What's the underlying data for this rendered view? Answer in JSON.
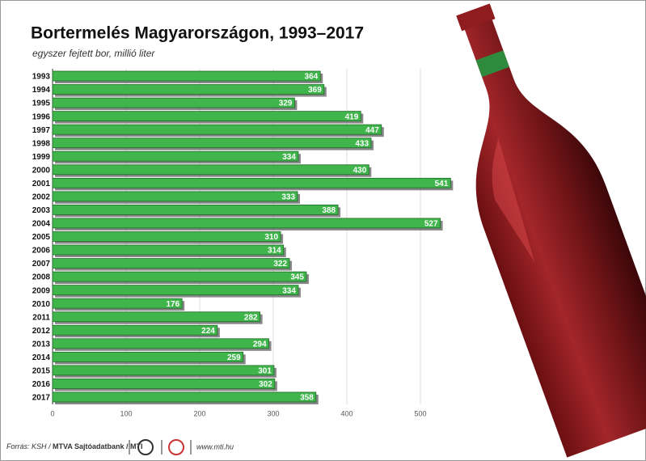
{
  "chart_data": {
    "type": "bar",
    "title": "Bortermelés Magyarországon, 1993–2017",
    "subtitle": "egyszer fejtett bor, millió liter",
    "categories": [
      "1993",
      "1994",
      "1995",
      "1996",
      "1997",
      "1998",
      "1999",
      "2000",
      "2001",
      "2002",
      "2003",
      "2004",
      "2005",
      "2006",
      "2007",
      "2008",
      "2009",
      "2010",
      "2011",
      "2012",
      "2013",
      "2014",
      "2015",
      "2016",
      "2017"
    ],
    "values": [
      364,
      369,
      329,
      419,
      447,
      433,
      334,
      430,
      541,
      333,
      388,
      527,
      310,
      314,
      322,
      345,
      334,
      176,
      282,
      224,
      294,
      259,
      301,
      302,
      358
    ],
    "color": "#3fb54b",
    "xlim": [
      0,
      500
    ],
    "xticks": [
      0,
      100,
      200,
      300,
      400,
      500
    ],
    "grid": true
  },
  "footer": {
    "source_prefix": "Forrás: KSH /",
    "source_bold": "MTVA Sajtóadatbank / MTI",
    "website": "www.mti.hu"
  }
}
